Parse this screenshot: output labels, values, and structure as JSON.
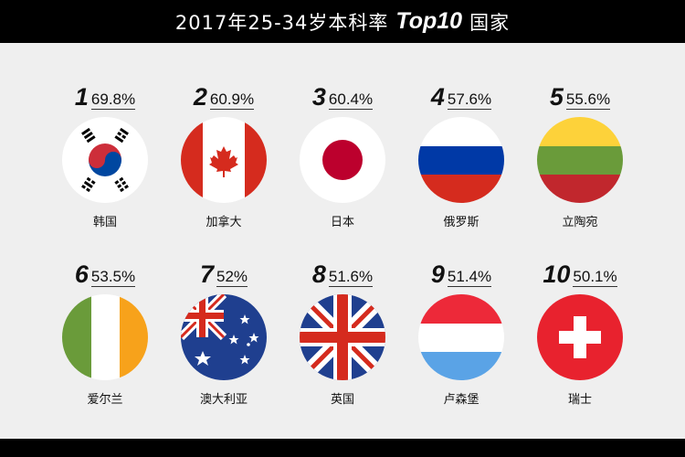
{
  "title": {
    "main": "2017年25-34岁本科率",
    "strong": "Top10",
    "suffix": "国家"
  },
  "items": [
    {
      "rank": "1",
      "pct": "69.8%",
      "country": "韩国",
      "flag": "south-korea"
    },
    {
      "rank": "2",
      "pct": "60.9%",
      "country": "加拿大",
      "flag": "canada"
    },
    {
      "rank": "3",
      "pct": "60.4%",
      "country": "日本",
      "flag": "japan"
    },
    {
      "rank": "4",
      "pct": "57.6%",
      "country": "俄罗斯",
      "flag": "russia"
    },
    {
      "rank": "5",
      "pct": "55.6%",
      "country": "立陶宛",
      "flag": "lithuania"
    },
    {
      "rank": "6",
      "pct": "53.5%",
      "country": "爱尔兰",
      "flag": "ireland"
    },
    {
      "rank": "7",
      "pct": "52%",
      "country": "澳大利亚",
      "flag": "australia"
    },
    {
      "rank": "8",
      "pct": "51.6%",
      "country": "英国",
      "flag": "united-kingdom"
    },
    {
      "rank": "9",
      "pct": "51.4%",
      "country": "卢森堡",
      "flag": "luxembourg"
    },
    {
      "rank": "10",
      "pct": "50.1%",
      "country": "瑞士",
      "flag": "switzerland"
    }
  ]
}
